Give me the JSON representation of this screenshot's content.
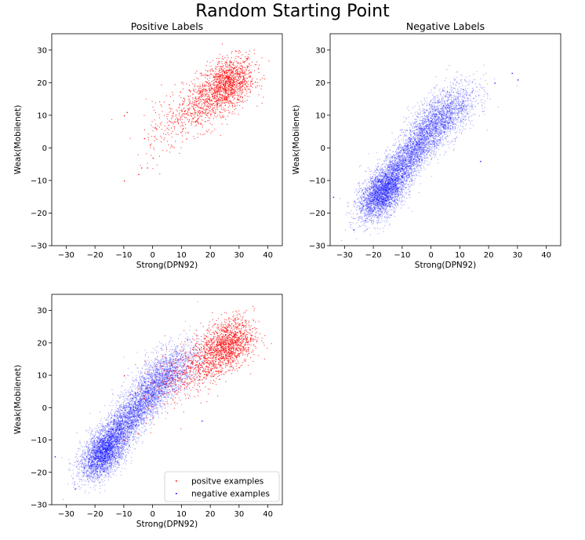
{
  "figure": {
    "suptitle": "Random Starting Point"
  },
  "colors": {
    "positive": "#ff0000",
    "negative": "#0000ff"
  },
  "chart_data": [
    {
      "type": "scatter",
      "title": "Positive Labels",
      "xlabel": "Strong(DPN92)",
      "ylabel": "Weak(Mobilenet)",
      "xlim": [
        -35,
        45
      ],
      "ylim": [
        -30,
        35
      ],
      "xticks": [
        -30,
        -20,
        -10,
        0,
        10,
        20,
        30,
        40
      ],
      "yticks": [
        -30,
        -20,
        -10,
        0,
        10,
        20,
        30
      ],
      "grid": false,
      "series": [
        {
          "class": "positive",
          "color": "#ff0000",
          "clusters": [
            {
              "cx": 26,
              "cy": 20,
              "sx": 4.5,
              "sy": 4.0,
              "rho": 0.3,
              "n": 1100
            },
            {
              "cx": 18,
              "cy": 14,
              "sx": 7.0,
              "sy": 5.0,
              "rho": 0.6,
              "n": 700
            },
            {
              "cx": 6,
              "cy": 8,
              "sx": 6.0,
              "sy": 6.0,
              "rho": 0.5,
              "n": 110
            }
          ],
          "points": [
            [
              -10,
              -10
            ],
            [
              -10,
              10
            ],
            [
              -9,
              11
            ],
            [
              -5,
              -8
            ],
            [
              -4,
              -6
            ],
            [
              -2,
              -6
            ],
            [
              -3,
              3
            ],
            [
              -1,
              1
            ],
            [
              0,
              -3
            ]
          ]
        }
      ]
    },
    {
      "type": "scatter",
      "title": "Negative Labels",
      "xlabel": "Strong(DPN92)",
      "ylabel": "Weak(Mobilenet)",
      "xlim": [
        -35,
        45
      ],
      "ylim": [
        -30,
        35
      ],
      "xticks": [
        -30,
        -20,
        -10,
        0,
        10,
        20,
        30,
        40
      ],
      "yticks": [
        -30,
        -20,
        -10,
        0,
        10,
        20,
        30
      ],
      "grid": false,
      "series": [
        {
          "class": "negative",
          "color": "#0000ff",
          "clusters": [
            {
              "cx": -17,
              "cy": -14,
              "sx": 4.0,
              "sy": 4.0,
              "rho": 0.5,
              "n": 2600
            },
            {
              "cx": -8,
              "cy": -3,
              "sx": 7.0,
              "sy": 7.0,
              "rho": 0.85,
              "n": 3000
            },
            {
              "cx": 4,
              "cy": 10,
              "sx": 6.0,
              "sy": 5.0,
              "rho": 0.6,
              "n": 1700
            }
          ],
          "points": [
            [
              28,
              23
            ],
            [
              30,
              21
            ],
            [
              -34,
              -15
            ],
            [
              17,
              -4
            ],
            [
              22,
              20
            ],
            [
              -27,
              -25
            ]
          ]
        }
      ]
    },
    {
      "type": "scatter",
      "title": "",
      "xlabel": "Strong(DPN92)",
      "ylabel": "Weak(Mobilenet)",
      "xlim": [
        -35,
        45
      ],
      "ylim": [
        -30,
        35
      ],
      "xticks": [
        -30,
        -20,
        -10,
        0,
        10,
        20,
        30,
        40
      ],
      "yticks": [
        -30,
        -20,
        -10,
        0,
        10,
        20,
        30
      ],
      "grid": false,
      "legend": {
        "placement": "lower-right",
        "entries": [
          {
            "label": "positve examples",
            "color": "#ff0000"
          },
          {
            "label": "negative examples",
            "color": "#0000ff"
          }
        ]
      },
      "series": [
        {
          "class": "negative",
          "name": "negative examples",
          "color": "#0000ff",
          "clusters": [
            {
              "cx": -17,
              "cy": -14,
              "sx": 4.0,
              "sy": 4.0,
              "rho": 0.5,
              "n": 2600
            },
            {
              "cx": -8,
              "cy": -3,
              "sx": 7.0,
              "sy": 7.0,
              "rho": 0.85,
              "n": 3000
            },
            {
              "cx": 4,
              "cy": 10,
              "sx": 6.0,
              "sy": 5.0,
              "rho": 0.6,
              "n": 1700
            }
          ],
          "points": [
            [
              -34,
              -15
            ],
            [
              17,
              -4
            ],
            [
              -27,
              -25
            ]
          ]
        },
        {
          "class": "positive",
          "name": "positve examples",
          "color": "#ff0000",
          "clusters": [
            {
              "cx": 26,
              "cy": 20,
              "sx": 4.5,
              "sy": 4.0,
              "rho": 0.3,
              "n": 1100
            },
            {
              "cx": 18,
              "cy": 14,
              "sx": 7.0,
              "sy": 5.0,
              "rho": 0.6,
              "n": 700
            },
            {
              "cx": 6,
              "cy": 8,
              "sx": 6.0,
              "sy": 6.0,
              "rho": 0.5,
              "n": 110
            }
          ],
          "points": [
            [
              -10,
              -10
            ],
            [
              -10,
              10
            ],
            [
              -5,
              -8
            ],
            [
              -3,
              3
            ],
            [
              0,
              -3
            ]
          ]
        }
      ]
    }
  ]
}
